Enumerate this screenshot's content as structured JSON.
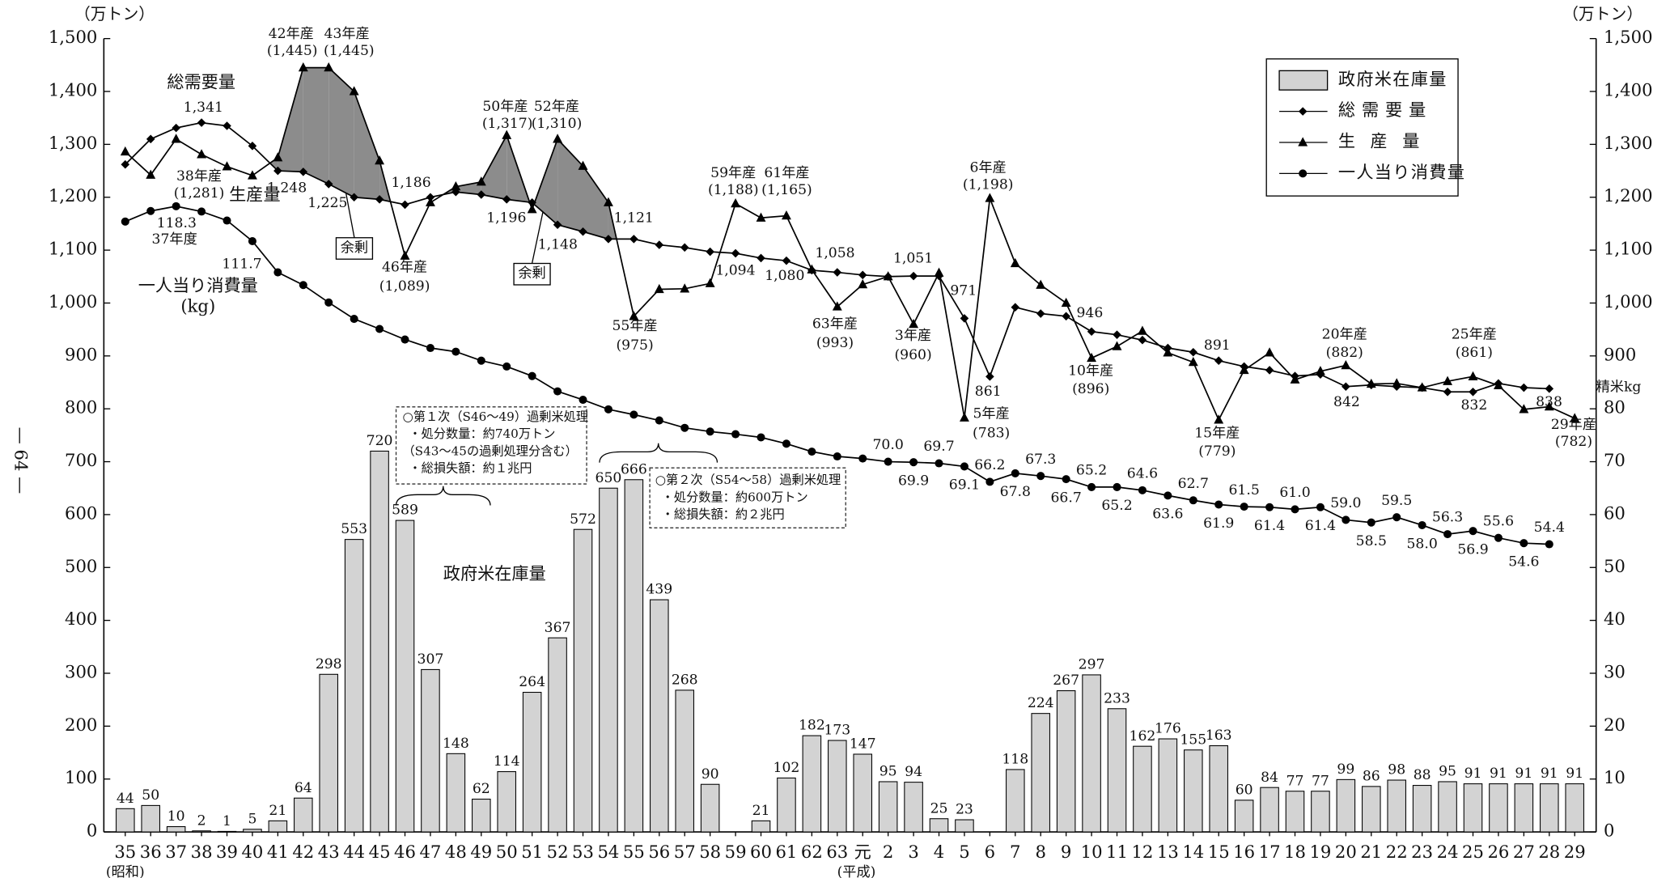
{
  "chart_data": {
    "type": "combo",
    "categories": [
      "35",
      "36",
      "37",
      "38",
      "39",
      "40",
      "41",
      "42",
      "43",
      "44",
      "45",
      "46",
      "47",
      "48",
      "49",
      "50",
      "51",
      "52",
      "53",
      "54",
      "55",
      "56",
      "57",
      "58",
      "59",
      "60",
      "61",
      "62",
      "63",
      "元",
      "2",
      "3",
      "4",
      "5",
      "6",
      "7",
      "8",
      "9",
      "10",
      "11",
      "12",
      "13",
      "14",
      "15",
      "16",
      "17",
      "18",
      "19",
      "20",
      "21",
      "22",
      "23",
      "24",
      "25",
      "26",
      "27",
      "28",
      "29"
    ],
    "ylim": [
      0,
      1500
    ],
    "yticks": [
      0,
      100,
      200,
      300,
      400,
      500,
      600,
      700,
      800,
      900,
      {
        "value": 1000,
        "label": "1,000"
      },
      {
        "value": 1100,
        "label": "1,100"
      },
      {
        "value": 1200,
        "label": "1,200"
      },
      {
        "value": 1300,
        "label": "1,300"
      },
      {
        "value": 1400,
        "label": "1,400"
      },
      {
        "value": 1500,
        "label": "1,500"
      }
    ],
    "y2lim": [
      0,
      150
    ],
    "y2ticks": [
      0,
      10,
      20,
      30,
      40,
      50,
      60,
      70,
      80,
      {
        "value": 90,
        "label": "900"
      },
      {
        "value": 100,
        "label": "1,000"
      },
      {
        "value": 110,
        "label": "1,100"
      },
      {
        "value": 120,
        "label": "1,200"
      },
      {
        "value": 130,
        "label": "1,300"
      },
      {
        "value": 140,
        "label": "1,400"
      },
      {
        "value": 150,
        "label": "1,500"
      }
    ],
    "series": [
      {
        "name": "政府米在庫量",
        "type": "bar",
        "color": "#d3d3d3",
        "values": [
          44,
          50,
          10,
          2,
          1,
          5,
          21,
          64,
          298,
          553,
          720,
          589,
          307,
          148,
          62,
          114,
          264,
          367,
          572,
          650,
          666,
          439,
          268,
          90,
          null,
          21,
          102,
          182,
          173,
          147,
          95,
          94,
          25,
          23,
          null,
          118,
          224,
          267,
          297,
          233,
          162,
          176,
          155,
          163,
          60,
          84,
          77,
          77,
          99,
          86,
          98,
          88,
          95,
          91,
          91,
          91,
          91,
          91
        ]
      },
      {
        "name": "総需要量",
        "type": "line",
        "marker": "diamond",
        "color": "#000000",
        "values": [
          1262,
          1310,
          1331,
          1341,
          1335,
          1297,
          1250,
          1248,
          1225,
          1200,
          1196,
          1186,
          1200,
          1210,
          1205,
          1196,
          1190,
          1148,
          1135,
          1121,
          1121,
          1110,
          1105,
          1097,
          1094,
          1085,
          1080,
          1062,
          1058,
          1053,
          1050,
          1051,
          1051,
          971,
          861,
          992,
          980,
          975,
          946,
          940,
          930,
          915,
          907,
          891,
          880,
          873,
          862,
          865,
          842,
          845,
          842,
          840,
          832,
          832,
          848,
          840,
          838,
          null
        ],
        "value_labels": [
          null,
          null,
          null,
          "1,341",
          null,
          null,
          null,
          "1,248",
          "1,225",
          null,
          null,
          "1,186",
          null,
          null,
          null,
          "1,196",
          null,
          "1,148",
          null,
          null,
          "1,121",
          null,
          null,
          null,
          "1,094",
          null,
          "1,080",
          null,
          "1,058",
          null,
          null,
          "1,051",
          null,
          "971",
          "861",
          null,
          null,
          null,
          "946",
          null,
          null,
          null,
          null,
          "891",
          null,
          null,
          null,
          null,
          "842",
          null,
          null,
          null,
          null,
          "832",
          null,
          null,
          "838",
          null
        ]
      },
      {
        "name": "生産量",
        "type": "line",
        "marker": "triangle",
        "color": "#000000",
        "values": [
          1286,
          1242,
          1310,
          1281,
          1258,
          1241,
          1275,
          1445,
          1445,
          1400,
          1269,
          1089,
          1190,
          1220,
          1229,
          1317,
          1177,
          1310,
          1259,
          1190,
          975,
          1026,
          1027,
          1037,
          1188,
          1161,
          1165,
          1063,
          993,
          1035,
          1050,
          960,
          1057,
          783,
          1198,
          1075,
          1034,
          1000,
          896,
          918,
          947,
          906,
          888,
          779,
          873,
          906,
          855,
          871,
          882,
          847,
          848,
          840,
          852,
          861,
          844,
          799,
          804,
          782
        ],
        "value_labels": [
          null,
          null,
          null,
          "(1,281)",
          null,
          null,
          null,
          "(1,445)",
          "(1,445)",
          null,
          null,
          "(1,089)",
          null,
          null,
          null,
          "(1,317)",
          null,
          "(1,310)",
          null,
          null,
          "(975)",
          null,
          null,
          null,
          "(1,188)",
          null,
          "(1,165)",
          null,
          "(993)",
          null,
          null,
          "(960)",
          null,
          "(783)",
          "(1,198)",
          null,
          null,
          null,
          "(896)",
          null,
          null,
          null,
          null,
          "(779)",
          null,
          null,
          null,
          null,
          "(882)",
          null,
          null,
          null,
          null,
          "(861)",
          null,
          null,
          null,
          "(782)"
        ]
      },
      {
        "name": "一人当り消費量",
        "type": "line",
        "marker": "circle",
        "axis": "y2",
        "color": "#000000",
        "values": [
          115.4,
          117.4,
          118.3,
          117.3,
          115.6,
          111.7,
          105.8,
          103.4,
          100.1,
          97.0,
          95.1,
          93.1,
          91.5,
          90.8,
          89.1,
          88.0,
          86.2,
          83.3,
          81.7,
          79.9,
          78.9,
          77.8,
          76.4,
          75.7,
          75.2,
          74.6,
          73.4,
          71.9,
          71.0,
          70.6,
          70.0,
          69.9,
          69.7,
          69.1,
          66.2,
          67.8,
          67.3,
          66.7,
          65.2,
          65.2,
          64.6,
          63.6,
          62.7,
          61.9,
          61.5,
          61.4,
          61.0,
          61.4,
          59.0,
          58.5,
          59.5,
          58.0,
          56.3,
          56.9,
          55.6,
          54.6,
          54.4,
          null
        ],
        "value_labels": [
          null,
          null,
          "118.3",
          null,
          null,
          "111.7",
          null,
          null,
          null,
          null,
          null,
          null,
          null,
          null,
          null,
          null,
          null,
          null,
          null,
          null,
          null,
          null,
          null,
          null,
          null,
          null,
          null,
          null,
          null,
          null,
          "70.0",
          "69.9",
          "69.7",
          "69.1",
          "66.2",
          "67.8",
          "67.3",
          "66.7",
          "65.2",
          "65.2",
          "64.6",
          "63.6",
          "62.7",
          "61.9",
          "61.5",
          "61.4",
          "61.0",
          "61.4",
          "59.0",
          "58.5",
          "59.5",
          "58.0",
          "56.3",
          "56.9",
          "55.6",
          "54.6",
          "54.4",
          null
        ]
      }
    ],
    "annotations": [
      "（万トン）",
      "（万トン）",
      "総需要量",
      "生産量",
      "一人当り消費量",
      "(kg)",
      "余剰",
      "余剰",
      "37年度",
      "政府米在庫量",
      "38年産",
      "42年産",
      "43年産",
      "46年産",
      "50年産",
      "52年産",
      "55年産",
      "59年産",
      "61年産",
      "63年産",
      "3年産",
      "5年産",
      "6年産",
      "10年産",
      "15年産",
      "20年産",
      "25年産",
      "29年産",
      "(昭和)",
      "(平成)",
      "— 64 —",
      "精米kg"
    ],
    "notes": [
      {
        "lines": [
          "○第１次（S46～49）過剰米処理",
          "・処分数量：約740万トン",
          "（S43～45の過剰処理分含む）",
          "・総損失額：約１兆円"
        ]
      },
      {
        "lines": [
          "○第２次（S54～58）過剰米処理",
          "・処分数量：約600万トン",
          "・総損失額：約２兆円"
        ]
      }
    ]
  }
}
